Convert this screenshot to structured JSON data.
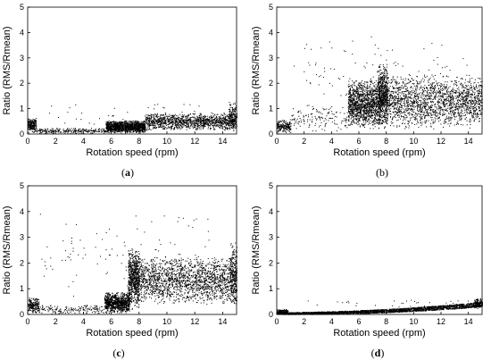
{
  "figure": {
    "background": "#ffffff",
    "point_color": "#000000"
  },
  "chart_data": [
    {
      "id": "a",
      "panel_label": "a",
      "label_style": "bold",
      "type": "scatter",
      "xlabel": "Rotation speed (rpm)",
      "ylabel": "Ratio (RMS/Rmean)",
      "xlim": [
        0,
        15
      ],
      "ylim": [
        0,
        5
      ],
      "xticks": [
        0,
        2,
        4,
        6,
        8,
        10,
        12,
        14
      ],
      "yticks": [
        0,
        1,
        2,
        3,
        4,
        5
      ],
      "grid": false,
      "clusters": [
        {
          "x": [
            0,
            0.6
          ],
          "y": [
            0.05,
            0.65
          ],
          "n": 220
        },
        {
          "x": [
            5.6,
            8.4
          ],
          "y": [
            0.05,
            0.55
          ],
          "n": 1400
        },
        {
          "x": [
            8.4,
            14.9
          ],
          "y": [
            0.15,
            0.85
          ],
          "n": 1300
        },
        {
          "x": [
            14.4,
            15
          ],
          "y": [
            0.1,
            1.3
          ],
          "n": 160
        },
        {
          "x": [
            0.5,
            5.6
          ],
          "y": [
            0.02,
            0.25
          ],
          "n": 260
        },
        {
          "x": [
            1.5,
            14
          ],
          "y": [
            0.3,
            1.4
          ],
          "n": 35
        }
      ]
    },
    {
      "id": "b",
      "panel_label": "b",
      "label_style": "plain",
      "type": "scatter",
      "xlabel": "Rotation speed (rpm)",
      "ylabel": "Ratio (RMS/Rmean)",
      "xlim": [
        0,
        15
      ],
      "ylim": [
        0,
        5
      ],
      "xticks": [
        0,
        2,
        4,
        6,
        8,
        10,
        12,
        14
      ],
      "yticks": [
        0,
        1,
        2,
        3,
        4,
        5
      ],
      "grid": false,
      "clusters": [
        {
          "x": [
            0,
            1.0
          ],
          "y": [
            0.05,
            0.6
          ],
          "n": 200
        },
        {
          "x": [
            5.2,
            7.5
          ],
          "y": [
            0.2,
            2.2
          ],
          "n": 1300
        },
        {
          "x": [
            7.4,
            8.1
          ],
          "y": [
            0.2,
            2.8
          ],
          "n": 700
        },
        {
          "x": [
            8.1,
            15
          ],
          "y": [
            0.2,
            2.4
          ],
          "n": 1800
        },
        {
          "x": [
            1.0,
            5.2
          ],
          "y": [
            0.05,
            1.2
          ],
          "n": 150
        },
        {
          "x": [
            1.0,
            14
          ],
          "y": [
            0.5,
            3.9
          ],
          "n": 130
        }
      ]
    },
    {
      "id": "c",
      "panel_label": "c",
      "label_style": "bold",
      "type": "scatter",
      "xlabel": "Rotation speed (rpm)",
      "ylabel": "Ratio (RMS/Rmean)",
      "xlim": [
        0,
        15
      ],
      "ylim": [
        0,
        5
      ],
      "xticks": [
        0,
        2,
        4,
        6,
        8,
        10,
        12,
        14
      ],
      "yticks": [
        0,
        1,
        2,
        3,
        4,
        5
      ],
      "grid": false,
      "clusters": [
        {
          "x": [
            0,
            0.8
          ],
          "y": [
            0.05,
            0.7
          ],
          "n": 200
        },
        {
          "x": [
            5.5,
            7.3
          ],
          "y": [
            0.05,
            0.9
          ],
          "n": 900
        },
        {
          "x": [
            7.2,
            8.0
          ],
          "y": [
            0.2,
            2.6
          ],
          "n": 700
        },
        {
          "x": [
            8.0,
            15
          ],
          "y": [
            0.4,
            2.3
          ],
          "n": 1900
        },
        {
          "x": [
            14.5,
            15
          ],
          "y": [
            0.3,
            2.9
          ],
          "n": 200
        },
        {
          "x": [
            0.8,
            5.5
          ],
          "y": [
            0.02,
            0.4
          ],
          "n": 180
        },
        {
          "x": [
            0.8,
            13
          ],
          "y": [
            0.5,
            4.3
          ],
          "n": 110
        }
      ]
    },
    {
      "id": "d",
      "panel_label": "d",
      "label_style": "bold",
      "type": "scatter",
      "xlabel": "Rotation speed (rpm)",
      "ylabel": "Ratio (RMS/Rmean)",
      "xlim": [
        0,
        15
      ],
      "ylim": [
        0,
        5
      ],
      "xticks": [
        0,
        2,
        4,
        6,
        8,
        10,
        12,
        14
      ],
      "yticks": [
        0,
        1,
        2,
        3,
        4,
        5
      ],
      "grid": false,
      "trend": {
        "x": [
          0,
          15
        ],
        "y_base": [
          0.05,
          0.4
        ],
        "spread": 0.12
      },
      "clusters": [
        {
          "x": [
            0,
            0.8
          ],
          "y": [
            0.02,
            0.22
          ],
          "n": 150
        },
        {
          "x": [
            14.4,
            15
          ],
          "y": [
            0.2,
            0.65
          ],
          "n": 100
        },
        {
          "x": [
            2,
            14
          ],
          "y": [
            0.25,
            0.65
          ],
          "n": 30
        }
      ],
      "trend_n": 2600
    }
  ]
}
